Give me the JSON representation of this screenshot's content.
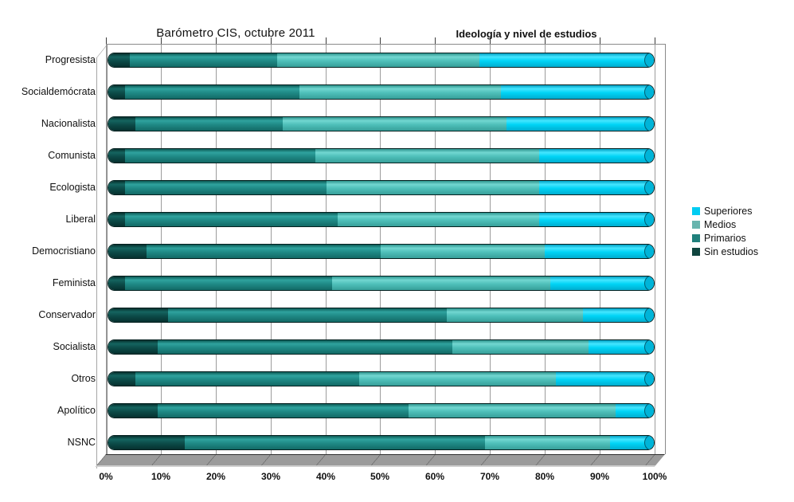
{
  "titles": {
    "left": "Barómetro CIS, octubre 2011",
    "right": "Ideología y nivel de estudios"
  },
  "legend": {
    "position": "right",
    "items": [
      {
        "label": "Superiores",
        "color": "#00ccf2"
      },
      {
        "label": "Medios",
        "color": "#68b5ae"
      },
      {
        "label": "Primarios",
        "color": "#20807c"
      },
      {
        "label": "Sin estudios",
        "color": "#10453f"
      }
    ]
  },
  "chart_data": {
    "type": "bar",
    "orientation": "horizontal",
    "stacked": true,
    "unit": "percent",
    "xlim": [
      0,
      100
    ],
    "grid": true,
    "legend_position": "right",
    "title": "Barómetro CIS, octubre 2011",
    "subtitle": "Ideología y nivel de estudios",
    "x_ticks": [
      "0%",
      "10%",
      "20%",
      "30%",
      "40%",
      "50%",
      "60%",
      "70%",
      "80%",
      "90%",
      "100%"
    ],
    "categories": [
      "Progresista",
      "Socialdemócrata",
      "Nacionalista",
      "Comunista",
      "Ecologista",
      "Liberal",
      "Democristiano",
      "Feminista",
      "Conservador",
      "Socialista",
      "Otros",
      "Apolítico",
      "NSNC"
    ],
    "series": [
      {
        "name": "Sin estudios",
        "color": "#0c4c49",
        "gradient": [
          "#062f2d",
          "#156560",
          "#0c4c49",
          "#06312f"
        ],
        "values": [
          4,
          3,
          5,
          3,
          3,
          3,
          7,
          3,
          11,
          9,
          5,
          9,
          14
        ]
      },
      {
        "name": "Primarios",
        "color": "#1f8a86",
        "gradient": [
          "#0d5a56",
          "#2fa39e",
          "#1f8a86",
          "#136a66"
        ],
        "values": [
          27,
          32,
          27,
          35,
          37,
          39,
          43,
          38,
          51,
          54,
          41,
          46,
          55
        ]
      },
      {
        "name": "Medios",
        "color": "#4fc0ba",
        "gradient": [
          "#2e958f",
          "#72d7d1",
          "#4fc0ba",
          "#37a09a"
        ],
        "values": [
          37,
          37,
          41,
          41,
          39,
          37,
          30,
          40,
          25,
          25,
          36,
          38,
          23
        ]
      },
      {
        "name": "Superiores",
        "color": "#00d4f6",
        "gradient": [
          "#00a0c4",
          "#45e6ff",
          "#00d4f6",
          "#00add0"
        ],
        "values": [
          32,
          28,
          27,
          21,
          21,
          21,
          20,
          19,
          13,
          12,
          18,
          7,
          8
        ]
      }
    ],
    "end_cap_color": "#00b4d8"
  }
}
